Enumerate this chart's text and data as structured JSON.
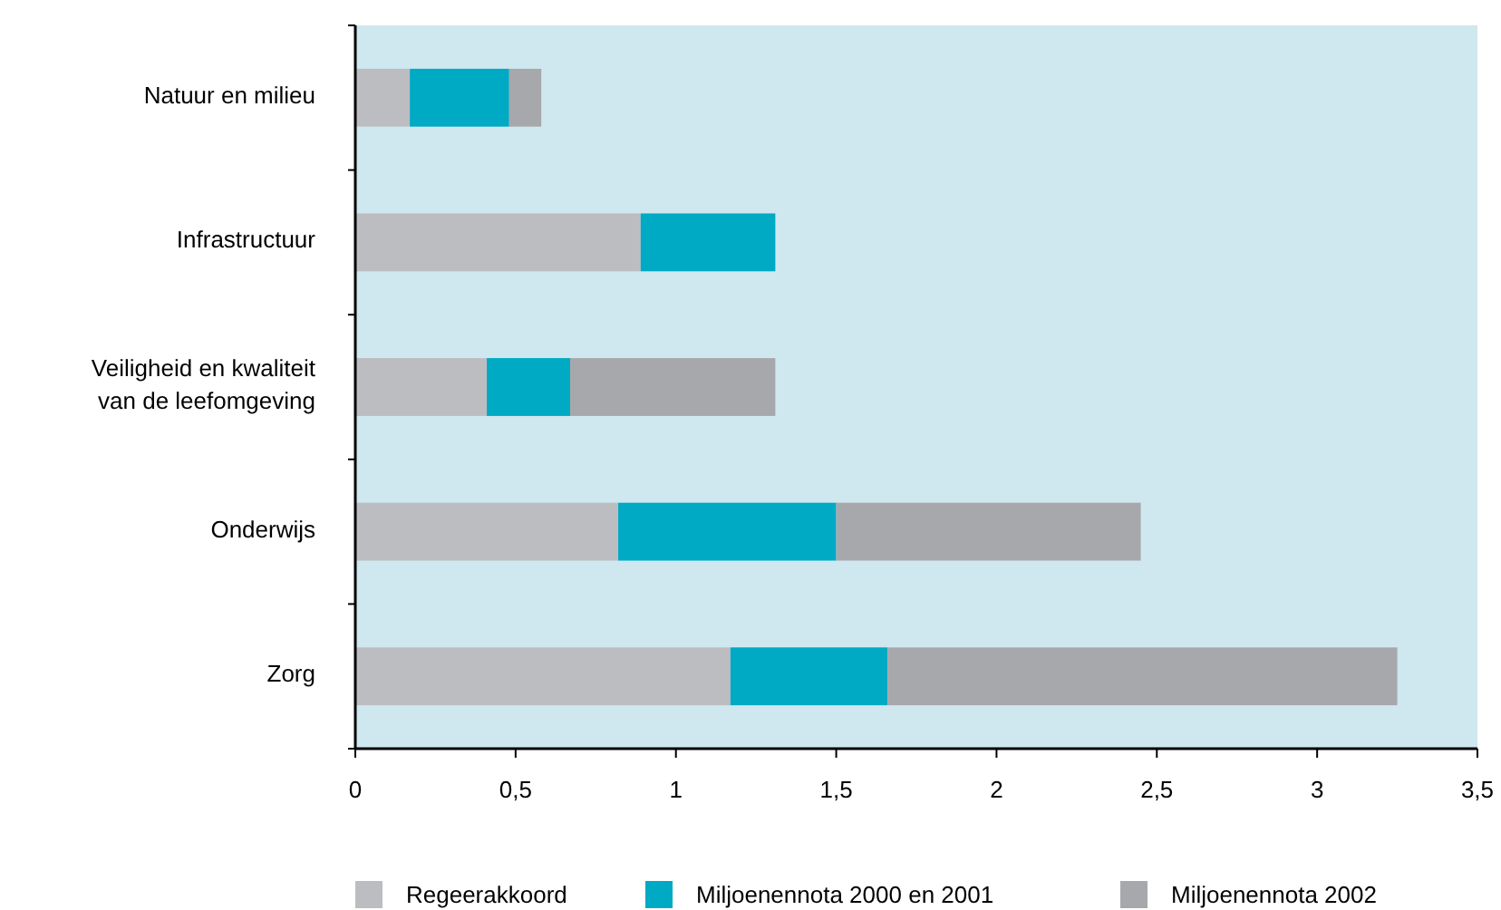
{
  "chart_data": {
    "type": "bar",
    "orientation": "horizontal",
    "stacked": true,
    "categories": [
      "Natuur en milieu",
      "Infrastructuur",
      "Veiligheid en kwaliteit van de leefomgeving",
      "Onderwijs",
      "Zorg"
    ],
    "series": [
      {
        "name": "Regeerakkoord",
        "color": "#bcbdc1",
        "values": [
          0.17,
          0.89,
          0.41,
          0.82,
          1.17
        ]
      },
      {
        "name": "Miljoenennota 2000 en 2001",
        "color": "#00a9c4",
        "values": [
          0.31,
          0.42,
          0.26,
          0.68,
          0.49
        ]
      },
      {
        "name": "Miljoenennota 2002",
        "color": "#a7a8ac",
        "values": [
          0.1,
          null,
          0.64,
          0.95,
          1.59
        ]
      }
    ],
    "xlim": [
      0,
      3.5
    ],
    "xticks": [
      {
        "value": 0,
        "label": "0"
      },
      {
        "value": 0.5,
        "label": "0,5"
      },
      {
        "value": 1,
        "label": "1"
      },
      {
        "value": 1.5,
        "label": "1,5"
      },
      {
        "value": 2,
        "label": "2"
      },
      {
        "value": 2.5,
        "label": "2,5"
      },
      {
        "value": 3,
        "label": "3"
      },
      {
        "value": 3.5,
        "label": "3,5"
      }
    ],
    "legend": "bottom",
    "grid": false
  }
}
